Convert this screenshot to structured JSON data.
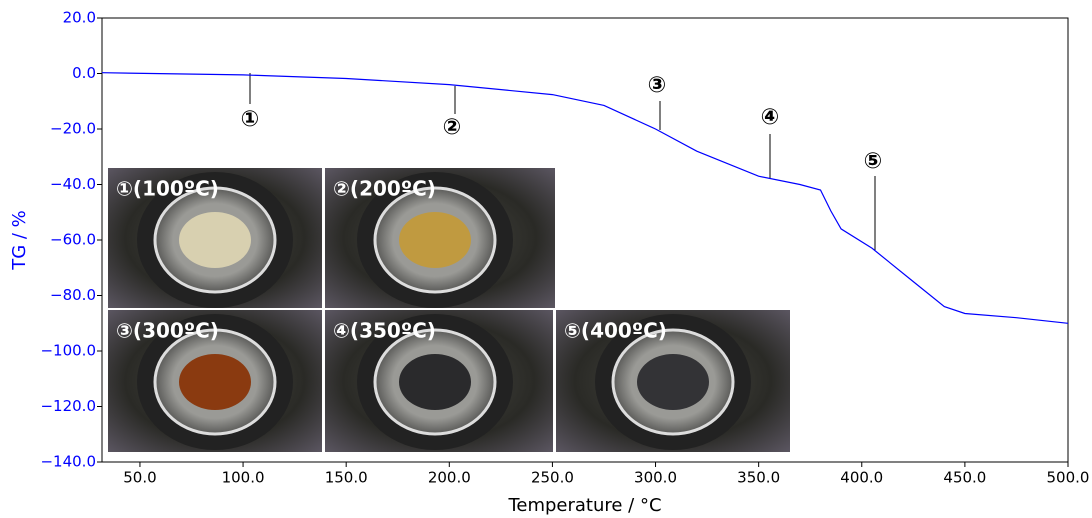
{
  "chart_data": {
    "type": "line",
    "x_label": "Temperature / °C",
    "y_label": "TG / %",
    "x": [
      31.6,
      100,
      150,
      200,
      250,
      275,
      300,
      320,
      350,
      370,
      380,
      385,
      390,
      405,
      425,
      440,
      450,
      475,
      500
    ],
    "values": [
      0.3,
      -0.5,
      -1.8,
      -4,
      -7.6,
      -11.5,
      -20,
      -28,
      -37,
      -40,
      -42,
      -49.5,
      -56,
      -63,
      -75,
      -84,
      -86.5,
      -88,
      -90
    ],
    "color": "#0000ff",
    "xlim": [
      31.6,
      500
    ],
    "ylim": [
      -140,
      20
    ],
    "xticks": [
      {
        "value": 50,
        "label": "50.0"
      },
      {
        "value": 100,
        "label": "100.0"
      },
      {
        "value": 150,
        "label": "150.0"
      },
      {
        "value": 200,
        "label": "200.0"
      },
      {
        "value": 250,
        "label": "250.0"
      },
      {
        "value": 300,
        "label": "300.0"
      },
      {
        "value": 350,
        "label": "350.0"
      },
      {
        "value": 400,
        "label": "400.0"
      },
      {
        "value": 450,
        "label": "450.0"
      },
      {
        "value": 500,
        "label": "500.0"
      }
    ],
    "yticks": [
      {
        "value": 20,
        "label": "20.0"
      },
      {
        "value": 0,
        "label": "0.0"
      },
      {
        "value": -20,
        "label": "−20.0"
      },
      {
        "value": -40,
        "label": "−40.0"
      },
      {
        "value": -60,
        "label": "−60.0"
      },
      {
        "value": -80,
        "label": "−80.0"
      },
      {
        "value": -100,
        "label": "−100.0"
      },
      {
        "value": -120,
        "label": "−120.0"
      },
      {
        "value": -140,
        "label": "−140.0"
      }
    ],
    "annotations": [
      "①",
      "②",
      "③",
      "④",
      "⑤"
    ],
    "insets": [
      "①(100ºC)",
      "②(200ºC)",
      "③(300ºC)",
      "④(350ºC)",
      "⑤(400ºC)"
    ]
  }
}
